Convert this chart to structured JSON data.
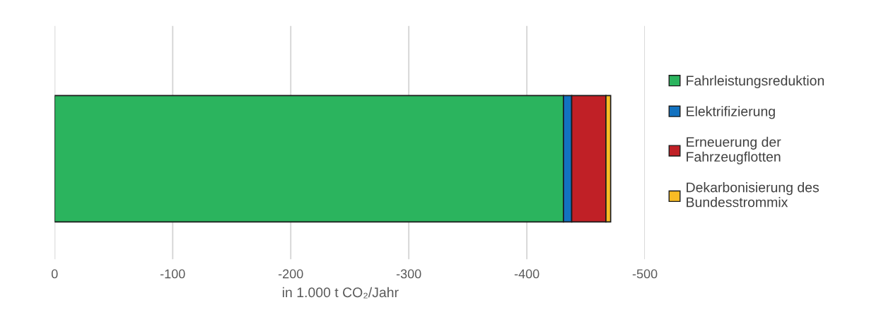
{
  "chart_data": {
    "type": "bar",
    "orientation": "horizontal",
    "stacked": true,
    "categories": [
      null
    ],
    "series": [
      {
        "name": "Fahrleistungsreduktion",
        "color": "#2bb45e",
        "values": [
          -431
        ]
      },
      {
        "name": "Elektrifizierung",
        "color": "#1272c0",
        "values": [
          -7
        ]
      },
      {
        "name": "Erneuerung der\nFahrzeugflotten",
        "color": "#c02026",
        "values": [
          -29
        ]
      },
      {
        "name": "Dekarbonisierung des\nBundesstrommix",
        "color": "#f9bc24",
        "values": [
          -4
        ]
      }
    ],
    "xlabel": "in 1.000 t CO₂/Jahr",
    "xlim": [
      0,
      -500
    ],
    "xticks": [
      0,
      -100,
      -200,
      -300,
      -400,
      -500
    ],
    "grid": "x",
    "legend": "right",
    "tick_labels": "x"
  }
}
